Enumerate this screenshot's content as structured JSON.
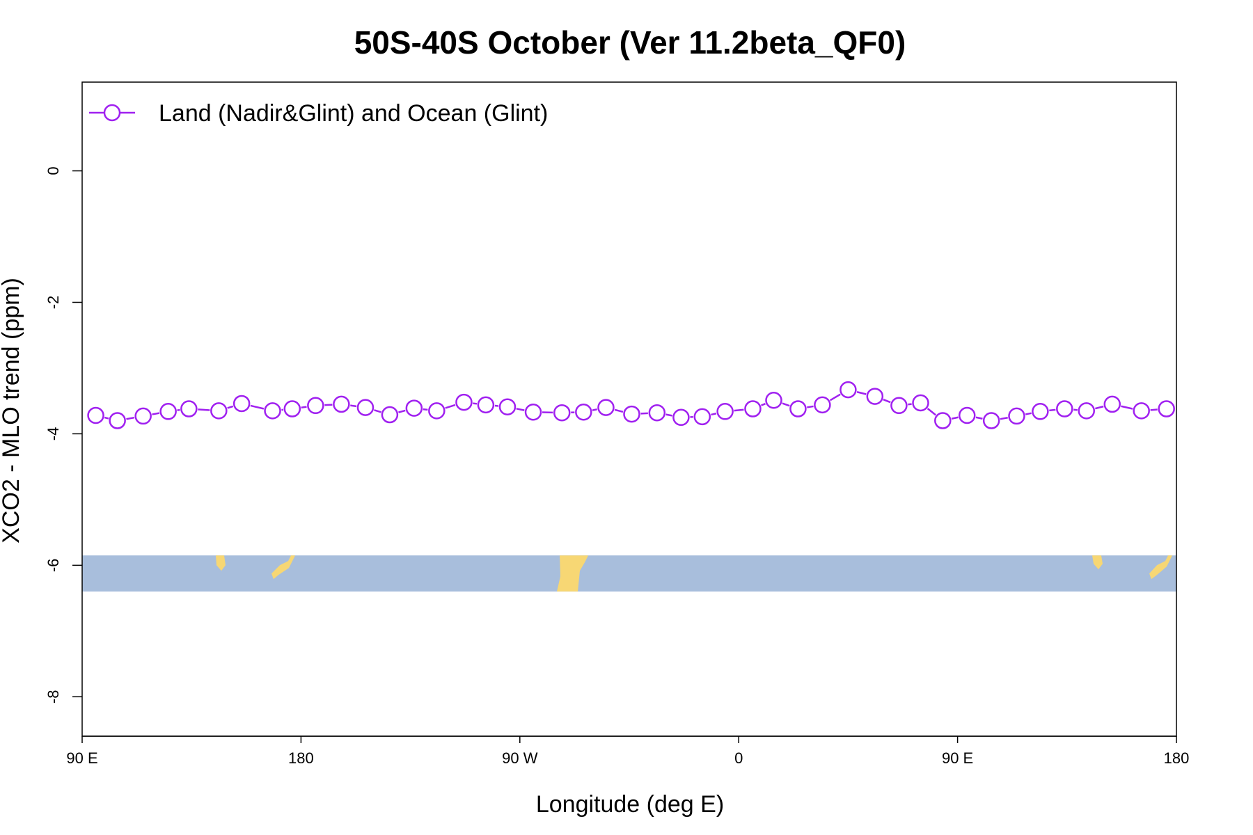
{
  "chart_data": {
    "type": "line",
    "title": "50S-40S October (Ver 11.2beta_QF0)",
    "xlabel": "Longitude (deg E)",
    "ylabel": "XCO2 - MLO trend (ppm)",
    "xlim": [
      90,
      540
    ],
    "ylim": [
      -8.6,
      1.35
    ],
    "x_ticks": [
      {
        "value": 90,
        "label": "90 E"
      },
      {
        "value": 180,
        "label": "180"
      },
      {
        "value": 270,
        "label": "90 W"
      },
      {
        "value": 360,
        "label": "0"
      },
      {
        "value": 450,
        "label": "90 E"
      },
      {
        "value": 540,
        "label": "180"
      }
    ],
    "y_ticks": [
      {
        "value": 0,
        "label": "0"
      },
      {
        "value": -2,
        "label": "-2"
      },
      {
        "value": -4,
        "label": "-4"
      },
      {
        "value": -6,
        "label": "-6"
      },
      {
        "value": -8,
        "label": "-8"
      }
    ],
    "legend": {
      "position": "top-left"
    },
    "colors": {
      "series": "#a020f0",
      "map_ocean": "#a8bedc",
      "map_land": "#f7d774"
    },
    "map_strip": {
      "y_top": -5.85,
      "y_bottom": -6.4
    },
    "series": [
      {
        "name": "Land (Nadir&Glint) and Ocean (Glint)",
        "x": [
          95.6,
          104.5,
          115.1,
          125.4,
          133.9,
          146.2,
          155.6,
          168.3,
          176.4,
          186.0,
          196.6,
          206.5,
          216.5,
          226.5,
          235.8,
          247.0,
          256.0,
          264.9,
          275.5,
          287.3,
          296.2,
          305.4,
          316.0,
          326.4,
          336.3,
          345.0,
          354.4,
          365.8,
          374.4,
          384.4,
          394.4,
          405.0,
          416.0,
          425.9,
          434.8,
          443.9,
          453.9,
          463.9,
          474.3,
          484.0,
          494.0,
          503.0,
          513.6,
          525.6,
          535.9
        ],
        "y": [
          -3.72,
          -3.8,
          -3.73,
          -3.66,
          -3.62,
          -3.65,
          -3.54,
          -3.65,
          -3.62,
          -3.57,
          -3.55,
          -3.6,
          -3.71,
          -3.61,
          -3.65,
          -3.52,
          -3.56,
          -3.59,
          -3.67,
          -3.68,
          -3.67,
          -3.6,
          -3.7,
          -3.68,
          -3.75,
          -3.74,
          -3.66,
          -3.62,
          -3.49,
          -3.62,
          -3.56,
          -3.33,
          -3.43,
          -3.57,
          -3.53,
          -3.8,
          -3.72,
          -3.8,
          -3.73,
          -3.66,
          -3.62,
          -3.65,
          -3.55,
          -3.65,
          -3.62
        ]
      }
    ]
  }
}
